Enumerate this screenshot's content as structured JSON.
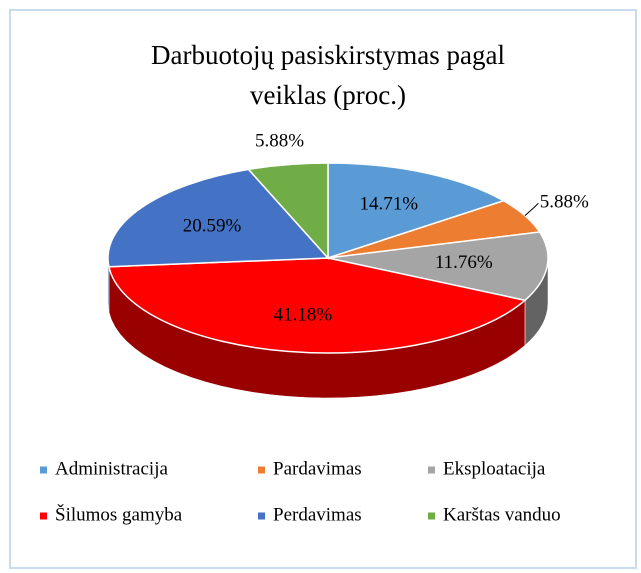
{
  "chart_data": {
    "type": "pie3d",
    "title": [
      "Darbuotojų pasiskirstymas pagal",
      "veiklas (proc.)"
    ],
    "categories": [
      "Administracija",
      "Pardavimas",
      "Eksploatacija",
      "Šilumos gamyba",
      "Perdavimas",
      "Karštas vanduo"
    ],
    "values": [
      14.71,
      5.88,
      11.76,
      41.18,
      20.59,
      5.88
    ],
    "value_labels": [
      "14.71%",
      "5.88%",
      "11.76%",
      "41.18%",
      "20.59%",
      "5.88%"
    ],
    "colors": [
      "#5b9bd5",
      "#ed7d31",
      "#a5a5a5",
      "#ff0000",
      "#4472c4",
      "#70ad47"
    ],
    "legend": "bottom"
  }
}
